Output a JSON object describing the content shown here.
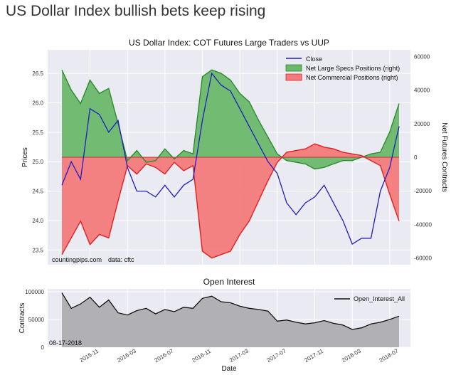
{
  "headline": "US Dollar Index bullish bets keep rising",
  "chart_data": [
    {
      "type": "area",
      "title": "US Dollar Index: COT Futures Large Traders vs UUP",
      "ylabel": "Prices",
      "ylabel_right": "Net Futures Contracts",
      "ylim": [
        23.25,
        26.9
      ],
      "ylim_right": [
        -64000,
        64000
      ],
      "yticks": [
        "23.5",
        "24.0",
        "24.5",
        "25.0",
        "25.5",
        "26.0",
        "26.5"
      ],
      "yticks_right": [
        "-60000",
        "-40000",
        "-20000",
        "0",
        "20000",
        "40000",
        "60000"
      ],
      "x": [
        "2015-08",
        "2015-09",
        "2015-10",
        "2015-11",
        "2015-12",
        "2016-01",
        "2016-02",
        "2016-03",
        "2016-04",
        "2016-05",
        "2016-06",
        "2016-07",
        "2016-08",
        "2016-09",
        "2016-10",
        "2016-11",
        "2016-12",
        "2017-01",
        "2017-02",
        "2017-03",
        "2017-04",
        "2017-05",
        "2017-06",
        "2017-07",
        "2017-08",
        "2017-09",
        "2017-10",
        "2017-11",
        "2017-12",
        "2018-01",
        "2018-02",
        "2018-03",
        "2018-04",
        "2018-05",
        "2018-06",
        "2018-07",
        "2018-08"
      ],
      "series": [
        {
          "name": "Close",
          "axis": "left",
          "color": "#1f1fbf",
          "values": [
            24.6,
            25.0,
            24.7,
            25.9,
            25.8,
            25.5,
            25.7,
            24.9,
            24.5,
            24.5,
            24.4,
            24.6,
            24.4,
            24.6,
            24.7,
            25.7,
            26.5,
            26.3,
            26.2,
            25.9,
            25.6,
            25.3,
            25.0,
            24.8,
            24.3,
            24.1,
            24.3,
            24.4,
            24.6,
            24.3,
            24.0,
            23.6,
            23.7,
            23.7,
            24.5,
            24.9,
            25.6
          ]
        },
        {
          "name": "Net Large Specs Positions (right)",
          "axis": "right",
          "color": "#2e8b2e",
          "fill": "#6ab86a",
          "values": [
            52000,
            40000,
            32000,
            46000,
            38000,
            41000,
            20000,
            -2000,
            4000,
            -3000,
            -2000,
            5000,
            -1000,
            4000,
            2000,
            48000,
            52000,
            50000,
            46000,
            38000,
            33000,
            22000,
            12000,
            2000,
            -2000,
            -3000,
            -4000,
            -7000,
            -6000,
            -4000,
            -2000,
            -2000,
            0,
            2000,
            3000,
            15000,
            32000
          ]
        },
        {
          "name": "Net Commercial Positions (right)",
          "axis": "right",
          "color": "#e02020",
          "fill": "#f47b7b",
          "values": [
            -58000,
            -48000,
            -38000,
            -52000,
            -46000,
            -48000,
            -26000,
            -5000,
            -10000,
            -4000,
            -6000,
            -10000,
            -3000,
            -8000,
            -5000,
            -56000,
            -60000,
            -58000,
            -56000,
            -46000,
            -38000,
            -26000,
            -14000,
            -3000,
            3000,
            4000,
            5000,
            8000,
            6000,
            5000,
            3000,
            2000,
            1000,
            -2000,
            -5000,
            -22000,
            -38000
          ]
        }
      ],
      "legend": "top-right",
      "grid": true,
      "annotations": [
        "countingpips.com",
        "data: cftc"
      ]
    },
    {
      "type": "area",
      "title": "Open Interest",
      "ylabel": "Contracts",
      "xlabel": "Date",
      "ylim": [
        0,
        105000
      ],
      "yticks": [
        "0",
        "50000",
        "100000"
      ],
      "xticks": [
        "2015-11",
        "2016-03",
        "2016-07",
        "2016-11",
        "2017-03",
        "2017-07",
        "2017-11",
        "2018-03",
        "2018-07"
      ],
      "series": [
        {
          "name": "Open_Interest_All",
          "color": "#111111",
          "fill": "#b0b0b5",
          "values": [
            98000,
            70000,
            78000,
            90000,
            72000,
            85000,
            62000,
            58000,
            66000,
            70000,
            60000,
            68000,
            64000,
            72000,
            70000,
            88000,
            92000,
            82000,
            80000,
            74000,
            70000,
            68000,
            65000,
            47000,
            49000,
            45000,
            42000,
            44000,
            48000,
            43000,
            40000,
            32000,
            35000,
            42000,
            45000,
            50000,
            56000
          ]
        }
      ],
      "legend": "top-right",
      "grid": true,
      "annotations": [
        "08-17-2018"
      ]
    }
  ]
}
